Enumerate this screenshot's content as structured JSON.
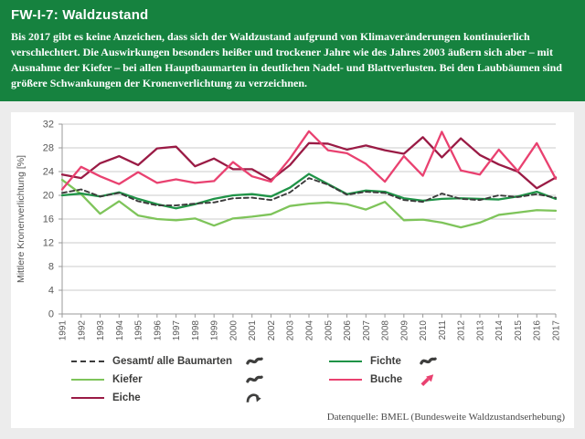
{
  "header": {
    "title": "FW-I-7: Waldzustand",
    "description": "Bis 2017 gibt es keine Anzeichen, dass sich der Waldzustand aufgrund von Klimaveränderungen kontinuierlich verschlechtert. Die Auswirkungen besonders heißer und trockener Jahre wie des Jahres 2003 äußern sich aber – mit Ausnahme der Kiefer – bei allen Hauptbaumarten in deutlichen Nadel- und Blattverlusten. Bei den Laubbäumen sind größere Schwankungen der Kronenverlichtung zu verzeichnen."
  },
  "chart_data": {
    "type": "line",
    "title": "",
    "xlabel": "",
    "ylabel": "Mittlere Kronenverlichtung [%]",
    "ylim": [
      0,
      32
    ],
    "ytick_step": 4,
    "grid": true,
    "legend_position": "bottom",
    "x": [
      1991,
      1992,
      1993,
      1994,
      1995,
      1996,
      1997,
      1998,
      1999,
      2000,
      2001,
      2002,
      2003,
      2004,
      2005,
      2006,
      2007,
      2008,
      2009,
      2010,
      2011,
      2012,
      2013,
      2014,
      2015,
      2016,
      2017
    ],
    "series": [
      {
        "name": "Gesamt/ alle Baumarten",
        "color": "#3b3b3b",
        "dashed": true,
        "trend_icon": "fluctuating",
        "icon_color": "#3f3f3e",
        "values": [
          20.4,
          21.0,
          19.8,
          20.4,
          19.0,
          18.3,
          18.3,
          18.6,
          18.8,
          19.5,
          19.6,
          19.2,
          20.5,
          22.9,
          21.8,
          20.1,
          20.6,
          20.4,
          19.2,
          18.9,
          20.3,
          19.4,
          19.2,
          20.0,
          19.7,
          20.2,
          19.6
        ]
      },
      {
        "name": "Kiefer",
        "color": "#7ec45a",
        "dashed": false,
        "trend_icon": "fluctuating",
        "icon_color": "#3f3f3e",
        "values": [
          22.6,
          20.2,
          16.9,
          19.0,
          16.6,
          16.0,
          15.8,
          16.1,
          14.9,
          16.1,
          16.4,
          16.8,
          18.2,
          18.6,
          18.8,
          18.5,
          17.6,
          18.9,
          15.8,
          15.9,
          15.4,
          14.6,
          15.4,
          16.7,
          17.1,
          17.5,
          17.4
        ]
      },
      {
        "name": "Eiche",
        "color": "#9a1b45",
        "dashed": false,
        "trend_icon": "reversal",
        "icon_color": "#3f3f3e",
        "values": [
          23.5,
          22.9,
          25.4,
          26.6,
          25.1,
          27.9,
          28.2,
          24.9,
          26.2,
          24.4,
          24.4,
          22.6,
          25.1,
          28.8,
          28.7,
          27.7,
          28.4,
          27.6,
          27.0,
          29.8,
          26.4,
          29.6,
          26.8,
          25.2,
          24.0,
          21.2,
          23.0
        ]
      },
      {
        "name": "Fichte",
        "color": "#1f9347",
        "dashed": false,
        "trend_icon": "fluctuating",
        "icon_color": "#3f3f3e",
        "values": [
          20.0,
          20.3,
          19.8,
          20.5,
          19.4,
          18.5,
          17.8,
          18.5,
          19.4,
          20.0,
          20.2,
          19.8,
          21.3,
          23.6,
          21.9,
          20.2,
          20.8,
          20.6,
          19.5,
          19.1,
          19.4,
          19.5,
          19.4,
          19.3,
          19.8,
          20.6,
          19.4
        ]
      },
      {
        "name": "Buche",
        "color": "#e94170",
        "dashed": false,
        "trend_icon": "rising",
        "icon_color": "#e94170",
        "values": [
          21.0,
          24.8,
          23.2,
          21.9,
          23.9,
          22.1,
          22.7,
          22.1,
          22.4,
          25.6,
          23.2,
          22.3,
          26.2,
          30.8,
          27.6,
          27.1,
          25.3,
          22.3,
          26.6,
          23.3,
          30.7,
          24.2,
          23.5,
          27.7,
          24.1,
          28.8,
          22.8
        ]
      }
    ],
    "legend_columns": [
      [
        0,
        1,
        2
      ],
      [
        3,
        4
      ]
    ]
  },
  "source": "Datenquelle: BMEL (Bundesweite Waldzustandserhebung)",
  "colors": {
    "header_background": "#16823f",
    "page_background": "#ececec",
    "panel_background": "#ffffff",
    "gridline": "#cbcbcb",
    "axis": "#999999",
    "axis_text": "#595959"
  }
}
